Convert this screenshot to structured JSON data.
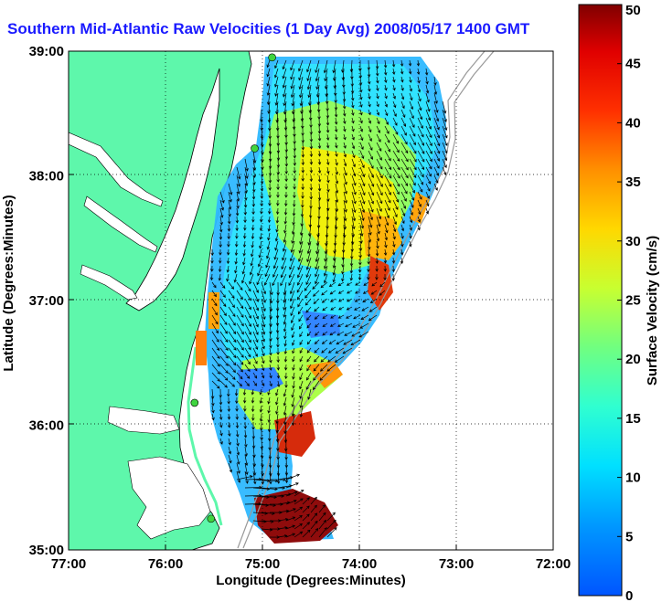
{
  "title": "Southern Mid-Atlantic Raw Velocities (1 Day Avg) 2008/05/17 1400 GMT",
  "colors": {
    "land": "#5ef7ab",
    "water": "#ffffff",
    "coast": "#000000",
    "vectors": "#000000",
    "sites": "#3fd43f",
    "title": "#1a1aff"
  },
  "chart_data": {
    "type": "heatmap",
    "xlabel": "Longitude (Degrees:Minutes)",
    "ylabel": "Latitude (Degrees:Minutes)",
    "x_ticks": [
      "77:00",
      "76:00",
      "75:00",
      "74:00",
      "73:00",
      "72:00"
    ],
    "x_tick_values": [
      -77,
      -76,
      -75,
      -74,
      -73,
      -72
    ],
    "y_ticks": [
      "39:00",
      "38:00",
      "37:00",
      "36:00",
      "35:00"
    ],
    "y_tick_values": [
      39,
      38,
      37,
      36,
      35
    ],
    "xlim": [
      -77,
      -72
    ],
    "ylim": [
      35,
      39
    ],
    "grid": true,
    "colorbar": {
      "label": "Surface Velocity (cm/s)",
      "ticks": [
        "50",
        "45",
        "40",
        "35",
        "30",
        "25",
        "20",
        "15",
        "10",
        "5",
        "0"
      ],
      "range": [
        0,
        50
      ],
      "colormap": "jet"
    },
    "sites": [
      {
        "lon": -74.9,
        "lat": 38.95
      },
      {
        "lon": -75.08,
        "lat": 38.22
      },
      {
        "lon": -75.7,
        "lat": 36.18
      },
      {
        "lon": -75.53,
        "lat": 35.25
      }
    ]
  }
}
